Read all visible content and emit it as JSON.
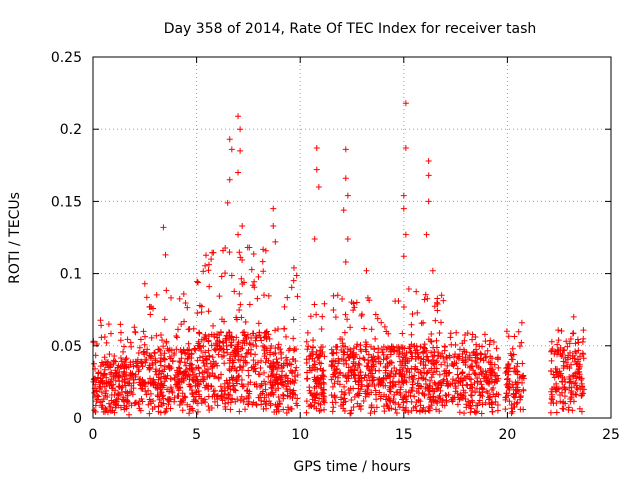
{
  "chart_data": {
    "type": "scatter",
    "title": "Day 358 of 2014, Rate Of TEC Index for receiver tash",
    "xlabel": "GPS time / hours",
    "ylabel": "ROTI / TECUs",
    "xlim": [
      0,
      25
    ],
    "ylim": [
      0,
      0.25
    ],
    "xticks": [
      0,
      5,
      10,
      15,
      20,
      25
    ],
    "xtick_labels": [
      "0",
      "5",
      "10",
      "15",
      "20",
      "25"
    ],
    "yticks": [
      0,
      0.05,
      0.1,
      0.15,
      0.2,
      0.25
    ],
    "ytick_labels": [
      "0",
      "0.05",
      "0.1",
      "0.15",
      "0.2",
      "0.25"
    ],
    "grid": true,
    "marker": "+",
    "series": [
      {
        "name": "ROTI",
        "color": "#ff0000",
        "bands": [
          {
            "x_range": [
              0.0,
              2.4
            ],
            "y_base": [
              0.002,
              0.04
            ],
            "y_peak": 0.068,
            "count": 260
          },
          {
            "x_range": [
              2.4,
              5.0
            ],
            "y_base": [
              0.003,
              0.048
            ],
            "y_peak": 0.09,
            "count": 300
          },
          {
            "x_range": [
              5.0,
              8.5
            ],
            "y_base": [
              0.003,
              0.06
            ],
            "y_peak": 0.12,
            "count": 420
          },
          {
            "x_range": [
              8.5,
              9.9
            ],
            "y_base": [
              0.003,
              0.05
            ],
            "y_peak": 0.1,
            "count": 160
          },
          {
            "x_range": [
              10.3,
              11.2
            ],
            "y_base": [
              0.003,
              0.05
            ],
            "y_peak": 0.08,
            "count": 120
          },
          {
            "x_range": [
              11.5,
              15.0
            ],
            "y_base": [
              0.003,
              0.05
            ],
            "y_peak": 0.085,
            "count": 380
          },
          {
            "x_range": [
              15.0,
              17.0
            ],
            "y_base": [
              0.003,
              0.05
            ],
            "y_peak": 0.09,
            "count": 240
          },
          {
            "x_range": [
              17.0,
              19.6
            ],
            "y_base": [
              0.003,
              0.045
            ],
            "y_peak": 0.06,
            "count": 260
          },
          {
            "x_range": [
              19.9,
              20.8
            ],
            "y_base": [
              0.003,
              0.04
            ],
            "y_peak": 0.062,
            "count": 90
          },
          {
            "x_range": [
              22.1,
              23.7
            ],
            "y_base": [
              0.003,
              0.048
            ],
            "y_peak": 0.068,
            "count": 170
          }
        ],
        "spikes": [
          {
            "x": 2.5,
            "y": 0.093
          },
          {
            "x": 3.4,
            "y": 0.132
          },
          {
            "x": 3.5,
            "y": 0.113
          },
          {
            "x": 6.6,
            "y": 0.193
          },
          {
            "x": 6.7,
            "y": 0.186
          },
          {
            "x": 6.6,
            "y": 0.165
          },
          {
            "x": 6.5,
            "y": 0.149
          },
          {
            "x": 7.0,
            "y": 0.209
          },
          {
            "x": 7.1,
            "y": 0.2
          },
          {
            "x": 7.1,
            "y": 0.185
          },
          {
            "x": 7.0,
            "y": 0.17
          },
          {
            "x": 7.2,
            "y": 0.133
          },
          {
            "x": 7.0,
            "y": 0.127
          },
          {
            "x": 8.7,
            "y": 0.145
          },
          {
            "x": 8.7,
            "y": 0.133
          },
          {
            "x": 8.8,
            "y": 0.122
          },
          {
            "x": 9.7,
            "y": 0.104
          },
          {
            "x": 10.8,
            "y": 0.187
          },
          {
            "x": 10.8,
            "y": 0.172
          },
          {
            "x": 10.9,
            "y": 0.16
          },
          {
            "x": 10.7,
            "y": 0.124
          },
          {
            "x": 12.2,
            "y": 0.186
          },
          {
            "x": 12.2,
            "y": 0.166
          },
          {
            "x": 12.3,
            "y": 0.154
          },
          {
            "x": 12.1,
            "y": 0.144
          },
          {
            "x": 12.3,
            "y": 0.124
          },
          {
            "x": 12.2,
            "y": 0.108
          },
          {
            "x": 13.2,
            "y": 0.102
          },
          {
            "x": 15.1,
            "y": 0.218
          },
          {
            "x": 15.1,
            "y": 0.187
          },
          {
            "x": 15.0,
            "y": 0.154
          },
          {
            "x": 15.0,
            "y": 0.145
          },
          {
            "x": 15.1,
            "y": 0.127
          },
          {
            "x": 15.0,
            "y": 0.112
          },
          {
            "x": 16.2,
            "y": 0.178
          },
          {
            "x": 16.2,
            "y": 0.168
          },
          {
            "x": 16.2,
            "y": 0.15
          },
          {
            "x": 16.1,
            "y": 0.127
          },
          {
            "x": 16.4,
            "y": 0.102
          },
          {
            "x": 20.7,
            "y": 0.066
          },
          {
            "x": 23.2,
            "y": 0.07
          }
        ]
      }
    ]
  }
}
